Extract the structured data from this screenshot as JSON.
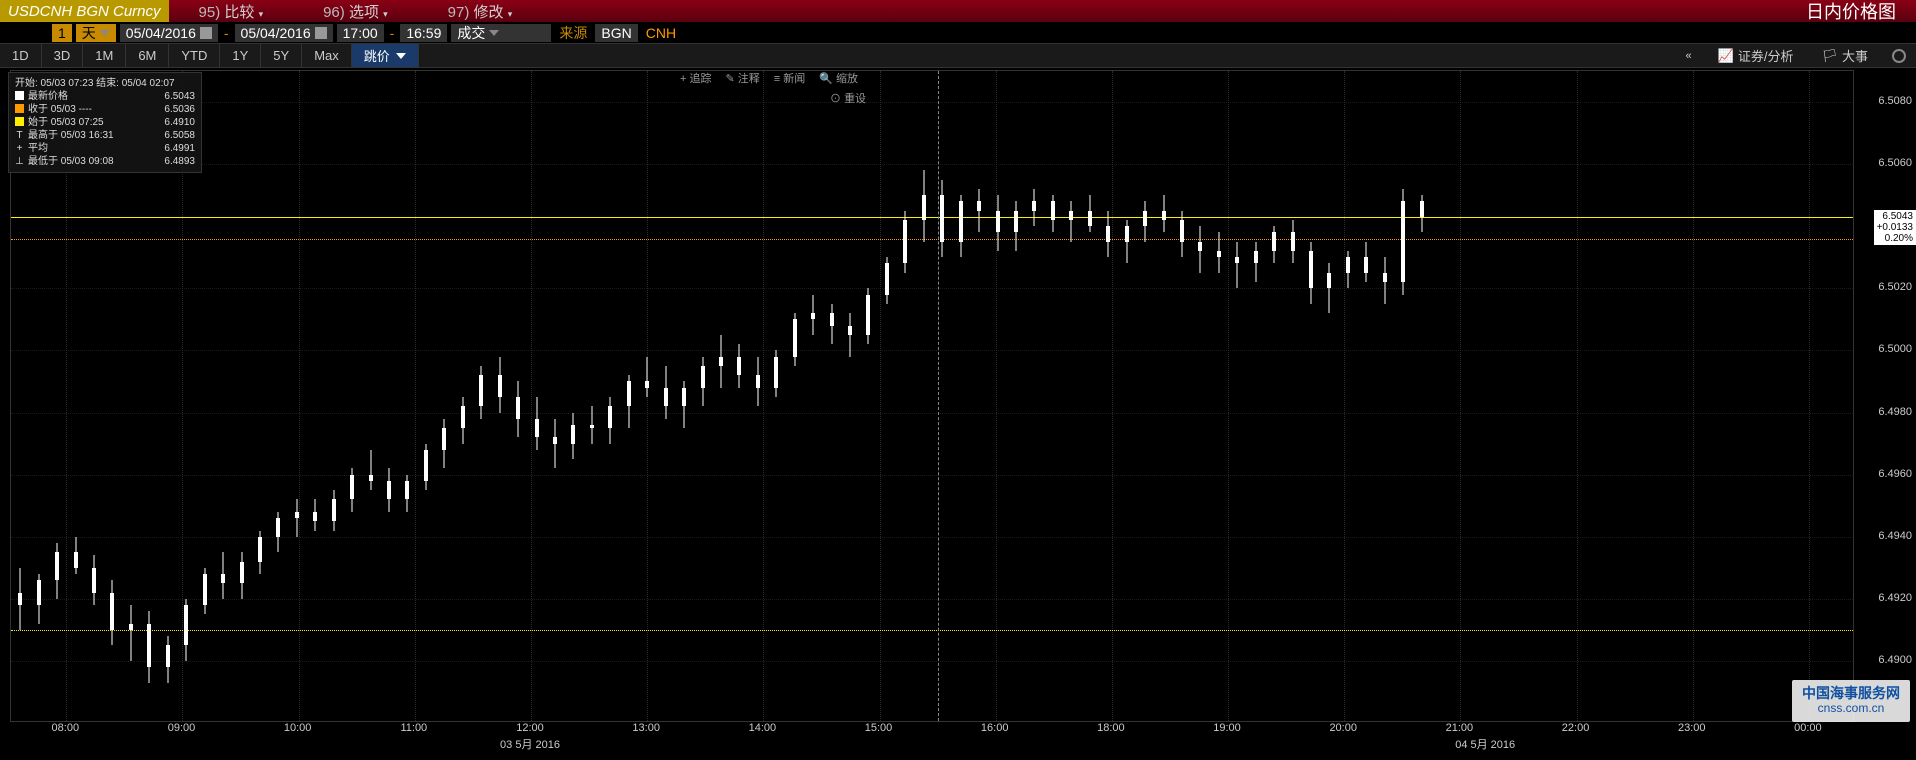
{
  "header": {
    "ticker": "USDCNH BGN Curncy",
    "menus": [
      {
        "num": "95)",
        "label": "比较"
      },
      {
        "num": "96)",
        "label": "选项"
      },
      {
        "num": "97)",
        "label": "修改"
      }
    ],
    "title": "日内价格图"
  },
  "params": {
    "period_n": "1",
    "period_u": "天",
    "date_from": "05/04/2016",
    "date_to": "05/04/2016",
    "time_from": "17:00",
    "time_to": "16:59",
    "type": "成交",
    "source_lbl": "来源",
    "source": "BGN",
    "ccy": "CNH"
  },
  "ranges": [
    "1D",
    "3D",
    "1M",
    "6M",
    "YTD",
    "1Y",
    "5Y",
    "Max"
  ],
  "jump": "跳价",
  "right_tools": {
    "sec": "证券/分析",
    "event": "大事"
  },
  "chart_tools": {
    "track": "追踪",
    "annot": "注释",
    "news": "新闻",
    "zoom": "缩放",
    "reset": "重设"
  },
  "legend": {
    "header": "开始: 05/03 07:23  结束: 05/04 02:07",
    "rows": [
      {
        "color": "#ffffff",
        "label": "最新价格",
        "val": "6.5043"
      },
      {
        "color": "#ff9900",
        "label": "收于 05/03 ----",
        "val": "6.5036"
      },
      {
        "color": "#ffee00",
        "label": "始于 05/03 07:25",
        "val": "6.4910"
      },
      {
        "sym": "T",
        "label": "最高于 05/03 16:31",
        "val": "6.5058"
      },
      {
        "sym": "+",
        "label": "平均",
        "val": "6.4991"
      },
      {
        "sym": "⊥",
        "label": "最低于 05/03 09:08",
        "val": "6.4893"
      }
    ]
  },
  "watermark": {
    "line1": "中国海事服务网",
    "line2": "cnss.com.cn"
  },
  "chart": {
    "ylim": [
      6.488,
      6.509
    ],
    "yticks": [
      6.49,
      6.492,
      6.494,
      6.496,
      6.498,
      6.5,
      6.502,
      6.5043,
      6.506,
      6.508
    ],
    "ytick_labels": [
      "6.4900",
      "6.4920",
      "6.4940",
      "6.4960",
      "6.4980",
      "6.5000",
      "6.5020",
      "6.5043",
      "6.5060",
      "6.5080"
    ],
    "price_tag": {
      "v": 6.5043,
      "p": "6.5043",
      "chg": "+0.0133",
      "pct": "0.20%",
      "bg": "#ffffff"
    },
    "hlines": [
      {
        "v": 6.5043,
        "color": "#ffee00",
        "dash": "solid"
      },
      {
        "v": 6.5036,
        "color": "#ff9900",
        "dash": "dotted"
      },
      {
        "v": 6.491,
        "color": "#ffee00",
        "dash": "dotted"
      }
    ],
    "vline_x": 0.5025,
    "xlim": [
      0,
      1
    ],
    "xticks": [
      {
        "x": 0.03,
        "l": "08:00"
      },
      {
        "x": 0.093,
        "l": "09:00"
      },
      {
        "x": 0.156,
        "l": "10:00"
      },
      {
        "x": 0.219,
        "l": "11:00"
      },
      {
        "x": 0.282,
        "l": "12:00"
      },
      {
        "x": 0.345,
        "l": "13:00"
      },
      {
        "x": 0.408,
        "l": "14:00"
      },
      {
        "x": 0.471,
        "l": "15:00"
      },
      {
        "x": 0.534,
        "l": "16:00"
      },
      {
        "x": 0.597,
        "l": "18:00"
      },
      {
        "x": 0.66,
        "l": "19:00"
      },
      {
        "x": 0.723,
        "l": "20:00"
      },
      {
        "x": 0.786,
        "l": "21:00"
      },
      {
        "x": 0.849,
        "l": "22:00"
      },
      {
        "x": 0.912,
        "l": "23:00"
      },
      {
        "x": 0.975,
        "l": "00:00"
      }
    ],
    "xdates": [
      {
        "x": 0.282,
        "l": "03 5月 2016"
      },
      {
        "x": 0.8,
        "l": "04 5月 2016"
      }
    ],
    "candles": [
      {
        "x": 0.005,
        "o": 6.4922,
        "h": 6.493,
        "l": 6.491,
        "c": 6.4918
      },
      {
        "x": 0.015,
        "o": 6.4918,
        "h": 6.4928,
        "l": 6.4912,
        "c": 6.4926
      },
      {
        "x": 0.025,
        "o": 6.4926,
        "h": 6.4938,
        "l": 6.492,
        "c": 6.4935
      },
      {
        "x": 0.035,
        "o": 6.4935,
        "h": 6.494,
        "l": 6.4928,
        "c": 6.493
      },
      {
        "x": 0.045,
        "o": 6.493,
        "h": 6.4934,
        "l": 6.4918,
        "c": 6.4922
      },
      {
        "x": 0.055,
        "o": 6.4922,
        "h": 6.4926,
        "l": 6.4905,
        "c": 6.491
      },
      {
        "x": 0.065,
        "o": 6.491,
        "h": 6.4918,
        "l": 6.49,
        "c": 6.4912
      },
      {
        "x": 0.075,
        "o": 6.4912,
        "h": 6.4916,
        "l": 6.4893,
        "c": 6.4898
      },
      {
        "x": 0.085,
        "o": 6.4898,
        "h": 6.4908,
        "l": 6.4893,
        "c": 6.4905
      },
      {
        "x": 0.095,
        "o": 6.4905,
        "h": 6.492,
        "l": 6.49,
        "c": 6.4918
      },
      {
        "x": 0.105,
        "o": 6.4918,
        "h": 6.493,
        "l": 6.4915,
        "c": 6.4928
      },
      {
        "x": 0.115,
        "o": 6.4928,
        "h": 6.4935,
        "l": 6.492,
        "c": 6.4925
      },
      {
        "x": 0.125,
        "o": 6.4925,
        "h": 6.4935,
        "l": 6.492,
        "c": 6.4932
      },
      {
        "x": 0.135,
        "o": 6.4932,
        "h": 6.4942,
        "l": 6.4928,
        "c": 6.494
      },
      {
        "x": 0.145,
        "o": 6.494,
        "h": 6.4948,
        "l": 6.4935,
        "c": 6.4946
      },
      {
        "x": 0.155,
        "o": 6.4946,
        "h": 6.4952,
        "l": 6.494,
        "c": 6.4948
      },
      {
        "x": 0.165,
        "o": 6.4948,
        "h": 6.4952,
        "l": 6.4942,
        "c": 6.4945
      },
      {
        "x": 0.175,
        "o": 6.4945,
        "h": 6.4955,
        "l": 6.4942,
        "c": 6.4952
      },
      {
        "x": 0.185,
        "o": 6.4952,
        "h": 6.4962,
        "l": 6.4948,
        "c": 6.496
      },
      {
        "x": 0.195,
        "o": 6.496,
        "h": 6.4968,
        "l": 6.4955,
        "c": 6.4958
      },
      {
        "x": 0.205,
        "o": 6.4958,
        "h": 6.4962,
        "l": 6.4948,
        "c": 6.4952
      },
      {
        "x": 0.215,
        "o": 6.4952,
        "h": 6.496,
        "l": 6.4948,
        "c": 6.4958
      },
      {
        "x": 0.225,
        "o": 6.4958,
        "h": 6.497,
        "l": 6.4955,
        "c": 6.4968
      },
      {
        "x": 0.235,
        "o": 6.4968,
        "h": 6.4978,
        "l": 6.4962,
        "c": 6.4975
      },
      {
        "x": 0.245,
        "o": 6.4975,
        "h": 6.4985,
        "l": 6.497,
        "c": 6.4982
      },
      {
        "x": 0.255,
        "o": 6.4982,
        "h": 6.4995,
        "l": 6.4978,
        "c": 6.4992
      },
      {
        "x": 0.265,
        "o": 6.4992,
        "h": 6.4998,
        "l": 6.498,
        "c": 6.4985
      },
      {
        "x": 0.275,
        "o": 6.4985,
        "h": 6.499,
        "l": 6.4972,
        "c": 6.4978
      },
      {
        "x": 0.285,
        "o": 6.4978,
        "h": 6.4985,
        "l": 6.4968,
        "c": 6.4972
      },
      {
        "x": 0.295,
        "o": 6.4972,
        "h": 6.4978,
        "l": 6.4962,
        "c": 6.497
      },
      {
        "x": 0.305,
        "o": 6.497,
        "h": 6.498,
        "l": 6.4965,
        "c": 6.4976
      },
      {
        "x": 0.315,
        "o": 6.4976,
        "h": 6.4982,
        "l": 6.497,
        "c": 6.4975
      },
      {
        "x": 0.325,
        "o": 6.4975,
        "h": 6.4985,
        "l": 6.497,
        "c": 6.4982
      },
      {
        "x": 0.335,
        "o": 6.4982,
        "h": 6.4992,
        "l": 6.4975,
        "c": 6.499
      },
      {
        "x": 0.345,
        "o": 6.499,
        "h": 6.4998,
        "l": 6.4985,
        "c": 6.4988
      },
      {
        "x": 0.355,
        "o": 6.4988,
        "h": 6.4995,
        "l": 6.4978,
        "c": 6.4982
      },
      {
        "x": 0.365,
        "o": 6.4982,
        "h": 6.499,
        "l": 6.4975,
        "c": 6.4988
      },
      {
        "x": 0.375,
        "o": 6.4988,
        "h": 6.4998,
        "l": 6.4982,
        "c": 6.4995
      },
      {
        "x": 0.385,
        "o": 6.4995,
        "h": 6.5005,
        "l": 6.4988,
        "c": 6.4998
      },
      {
        "x": 0.395,
        "o": 6.4998,
        "h": 6.5002,
        "l": 6.4988,
        "c": 6.4992
      },
      {
        "x": 0.405,
        "o": 6.4992,
        "h": 6.4998,
        "l": 6.4982,
        "c": 6.4988
      },
      {
        "x": 0.415,
        "o": 6.4988,
        "h": 6.5,
        "l": 6.4985,
        "c": 6.4998
      },
      {
        "x": 0.425,
        "o": 6.4998,
        "h": 6.5012,
        "l": 6.4995,
        "c": 6.501
      },
      {
        "x": 0.435,
        "o": 6.501,
        "h": 6.5018,
        "l": 6.5005,
        "c": 6.5012
      },
      {
        "x": 0.445,
        "o": 6.5012,
        "h": 6.5015,
        "l": 6.5002,
        "c": 6.5008
      },
      {
        "x": 0.455,
        "o": 6.5008,
        "h": 6.5012,
        "l": 6.4998,
        "c": 6.5005
      },
      {
        "x": 0.465,
        "o": 6.5005,
        "h": 6.502,
        "l": 6.5002,
        "c": 6.5018
      },
      {
        "x": 0.475,
        "o": 6.5018,
        "h": 6.503,
        "l": 6.5015,
        "c": 6.5028
      },
      {
        "x": 0.485,
        "o": 6.5028,
        "h": 6.5045,
        "l": 6.5025,
        "c": 6.5042
      },
      {
        "x": 0.495,
        "o": 6.5042,
        "h": 6.5058,
        "l": 6.5035,
        "c": 6.505
      },
      {
        "x": 0.505,
        "o": 6.505,
        "h": 6.5055,
        "l": 6.503,
        "c": 6.5035
      },
      {
        "x": 0.515,
        "o": 6.5035,
        "h": 6.505,
        "l": 6.503,
        "c": 6.5048
      },
      {
        "x": 0.525,
        "o": 6.5048,
        "h": 6.5052,
        "l": 6.5038,
        "c": 6.5045
      },
      {
        "x": 0.535,
        "o": 6.5045,
        "h": 6.505,
        "l": 6.5032,
        "c": 6.5038
      },
      {
        "x": 0.545,
        "o": 6.5038,
        "h": 6.5048,
        "l": 6.5032,
        "c": 6.5045
      },
      {
        "x": 0.555,
        "o": 6.5045,
        "h": 6.5052,
        "l": 6.504,
        "c": 6.5048
      },
      {
        "x": 0.565,
        "o": 6.5048,
        "h": 6.505,
        "l": 6.5038,
        "c": 6.5042
      },
      {
        "x": 0.575,
        "o": 6.5042,
        "h": 6.5048,
        "l": 6.5035,
        "c": 6.5045
      },
      {
        "x": 0.585,
        "o": 6.5045,
        "h": 6.505,
        "l": 6.5038,
        "c": 6.504
      },
      {
        "x": 0.595,
        "o": 6.504,
        "h": 6.5045,
        "l": 6.503,
        "c": 6.5035
      },
      {
        "x": 0.605,
        "o": 6.5035,
        "h": 6.5042,
        "l": 6.5028,
        "c": 6.504
      },
      {
        "x": 0.615,
        "o": 6.504,
        "h": 6.5048,
        "l": 6.5035,
        "c": 6.5045
      },
      {
        "x": 0.625,
        "o": 6.5045,
        "h": 6.505,
        "l": 6.5038,
        "c": 6.5042
      },
      {
        "x": 0.635,
        "o": 6.5042,
        "h": 6.5045,
        "l": 6.503,
        "c": 6.5035
      },
      {
        "x": 0.645,
        "o": 6.5035,
        "h": 6.504,
        "l": 6.5025,
        "c": 6.5032
      },
      {
        "x": 0.655,
        "o": 6.5032,
        "h": 6.5038,
        "l": 6.5025,
        "c": 6.503
      },
      {
        "x": 0.665,
        "o": 6.503,
        "h": 6.5035,
        "l": 6.502,
        "c": 6.5028
      },
      {
        "x": 0.675,
        "o": 6.5028,
        "h": 6.5035,
        "l": 6.5022,
        "c": 6.5032
      },
      {
        "x": 0.685,
        "o": 6.5032,
        "h": 6.504,
        "l": 6.5028,
        "c": 6.5038
      },
      {
        "x": 0.695,
        "o": 6.5038,
        "h": 6.5042,
        "l": 6.5028,
        "c": 6.5032
      },
      {
        "x": 0.705,
        "o": 6.5032,
        "h": 6.5035,
        "l": 6.5015,
        "c": 6.502
      },
      {
        "x": 0.715,
        "o": 6.502,
        "h": 6.5028,
        "l": 6.5012,
        "c": 6.5025
      },
      {
        "x": 0.725,
        "o": 6.5025,
        "h": 6.5032,
        "l": 6.502,
        "c": 6.503
      },
      {
        "x": 0.735,
        "o": 6.503,
        "h": 6.5035,
        "l": 6.5022,
        "c": 6.5025
      },
      {
        "x": 0.745,
        "o": 6.5025,
        "h": 6.503,
        "l": 6.5015,
        "c": 6.5022
      },
      {
        "x": 0.755,
        "o": 6.5022,
        "h": 6.5052,
        "l": 6.5018,
        "c": 6.5048
      },
      {
        "x": 0.765,
        "o": 6.5048,
        "h": 6.505,
        "l": 6.5038,
        "c": 6.5043
      }
    ]
  }
}
